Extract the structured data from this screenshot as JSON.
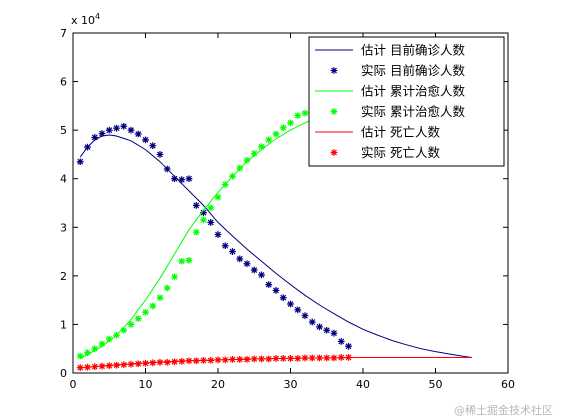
{
  "chart_data": {
    "type": "line",
    "scale_label": "x 10",
    "scale_exponent": "4",
    "xlim": [
      0,
      60
    ],
    "ylim": [
      0,
      7
    ],
    "xticks": [
      0,
      10,
      20,
      30,
      40,
      50,
      60
    ],
    "yticks": [
      0,
      1,
      2,
      3,
      4,
      5,
      6,
      7
    ],
    "legend_position": "top-right",
    "series": [
      {
        "name": "估计 目前确诊人数",
        "style": "line",
        "color": "#00007f",
        "x": [
          1,
          2,
          3,
          4,
          5,
          6,
          8,
          10,
          12,
          14,
          16,
          18,
          20,
          22,
          24,
          26,
          28,
          30,
          32,
          34,
          36,
          38,
          40,
          42,
          44,
          46,
          48,
          50,
          52,
          54,
          55
        ],
        "y": [
          4.45,
          4.65,
          4.8,
          4.88,
          4.9,
          4.88,
          4.78,
          4.6,
          4.35,
          4.05,
          3.75,
          3.45,
          3.1,
          2.82,
          2.55,
          2.3,
          2.05,
          1.82,
          1.6,
          1.4,
          1.22,
          1.05,
          0.9,
          0.78,
          0.67,
          0.58,
          0.5,
          0.44,
          0.39,
          0.34,
          0.32
        ]
      },
      {
        "name": "实际 目前确诊人数",
        "style": "markers",
        "color": "#00007f",
        "x": [
          1,
          2,
          3,
          4,
          5,
          6,
          7,
          8,
          9,
          10,
          11,
          12,
          13,
          14,
          15,
          16,
          17,
          18,
          19,
          20,
          21,
          22,
          23,
          24,
          25,
          26,
          27,
          28,
          29,
          30,
          31,
          32,
          33,
          34,
          35,
          36,
          37,
          38
        ],
        "y": [
          4.35,
          4.65,
          4.85,
          4.93,
          5.0,
          5.04,
          5.08,
          5.0,
          4.92,
          4.8,
          4.68,
          4.5,
          4.2,
          4.0,
          3.98,
          4.0,
          3.45,
          3.3,
          3.1,
          2.85,
          2.62,
          2.5,
          2.35,
          2.25,
          2.12,
          2.02,
          1.82,
          1.7,
          1.55,
          1.42,
          1.3,
          1.18,
          1.05,
          0.95,
          0.88,
          0.82,
          0.65,
          0.55
        ]
      },
      {
        "name": "估计 累计治愈人数",
        "style": "line",
        "color": "#00ff00",
        "x": [
          1,
          2,
          4,
          6,
          8,
          10,
          12,
          14,
          16,
          18,
          20,
          22,
          24,
          26,
          28,
          30,
          32,
          34,
          36
        ],
        "y": [
          0.3,
          0.38,
          0.55,
          0.78,
          1.1,
          1.5,
          1.95,
          2.45,
          2.95,
          3.35,
          3.72,
          4.05,
          4.35,
          4.6,
          4.82,
          5.0,
          5.15,
          5.3,
          5.42
        ]
      },
      {
        "name": "实际 累计治愈人数",
        "style": "markers",
        "color": "#00ff00",
        "x": [
          1,
          2,
          3,
          4,
          5,
          6,
          7,
          8,
          9,
          10,
          11,
          12,
          13,
          14,
          15,
          16,
          17,
          18,
          19,
          20,
          21,
          22,
          23,
          24,
          25,
          26,
          27,
          28,
          29,
          30,
          31,
          32,
          33,
          34,
          35,
          36
        ],
        "y": [
          0.35,
          0.42,
          0.5,
          0.6,
          0.7,
          0.78,
          0.88,
          1.0,
          1.12,
          1.25,
          1.38,
          1.55,
          1.75,
          1.98,
          2.3,
          2.32,
          2.9,
          3.15,
          3.4,
          3.62,
          3.88,
          4.05,
          4.22,
          4.38,
          4.52,
          4.66,
          4.8,
          4.92,
          5.05,
          5.15,
          5.3,
          5.35,
          5.4,
          5.45,
          5.5,
          5.55
        ]
      },
      {
        "name": "估计 死亡人数",
        "style": "line",
        "color": "#ff0000",
        "x": [
          1,
          5,
          10,
          15,
          20,
          25,
          30,
          35,
          40,
          45,
          50,
          55
        ],
        "y": [
          0.11,
          0.16,
          0.21,
          0.25,
          0.27,
          0.29,
          0.3,
          0.31,
          0.32,
          0.32,
          0.32,
          0.32
        ]
      },
      {
        "name": "实际 死亡人数",
        "style": "markers",
        "color": "#ff0000",
        "x": [
          1,
          2,
          3,
          4,
          5,
          6,
          7,
          8,
          9,
          10,
          11,
          12,
          13,
          14,
          15,
          16,
          17,
          18,
          19,
          20,
          21,
          22,
          23,
          24,
          25,
          26,
          27,
          28,
          29,
          30,
          31,
          32,
          33,
          34,
          35,
          36,
          37,
          38
        ],
        "y": [
          0.11,
          0.12,
          0.13,
          0.14,
          0.15,
          0.16,
          0.17,
          0.18,
          0.19,
          0.2,
          0.21,
          0.22,
          0.22,
          0.23,
          0.24,
          0.25,
          0.25,
          0.26,
          0.26,
          0.27,
          0.27,
          0.28,
          0.28,
          0.28,
          0.29,
          0.29,
          0.29,
          0.3,
          0.3,
          0.3,
          0.3,
          0.31,
          0.31,
          0.31,
          0.31,
          0.31,
          0.32,
          0.32
        ]
      }
    ]
  },
  "watermark": "@稀土掘金技术社区"
}
